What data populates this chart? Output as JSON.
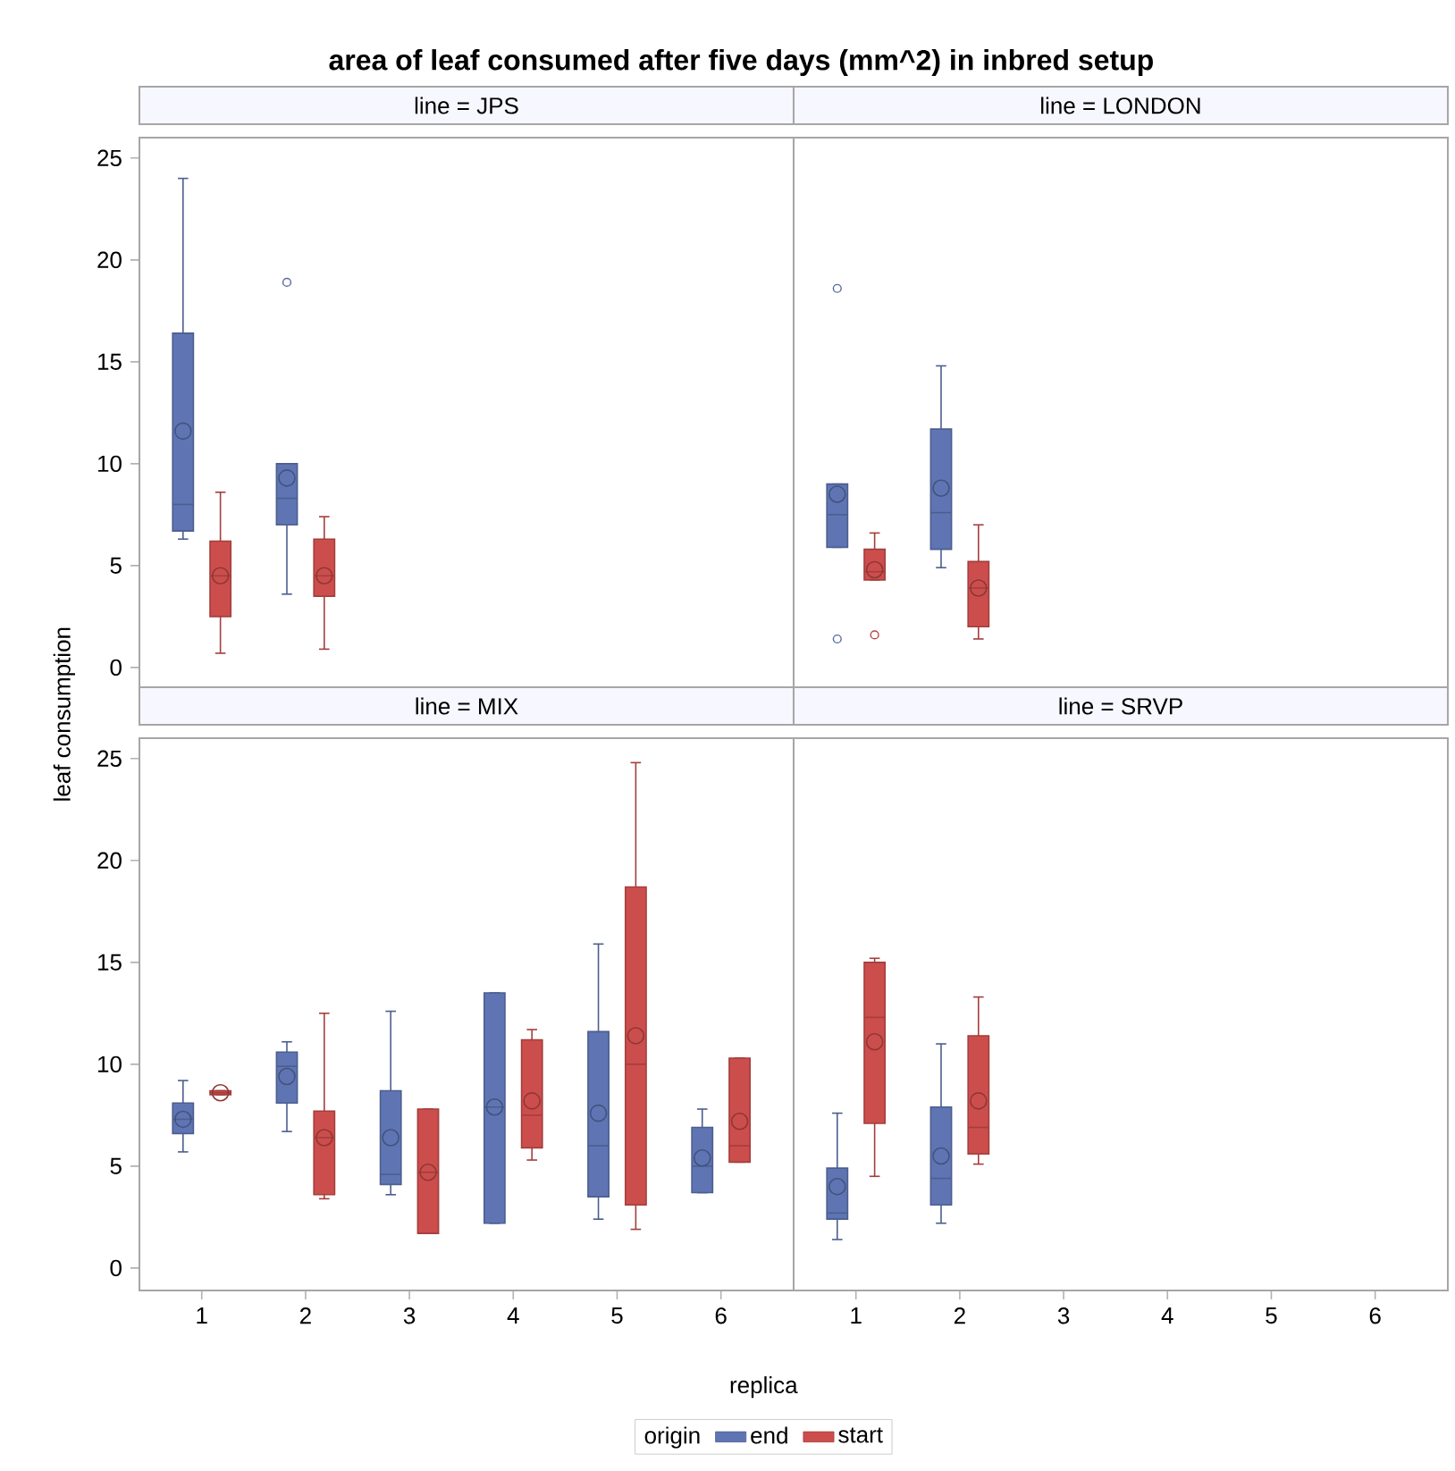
{
  "chart_data": [
    {
      "type": "box",
      "title": "area of leaf consumed after five days (mm^2) in inbred setup",
      "subtitle": "line = JPS",
      "ylabel": "leaf consumption",
      "categories": [
        "1",
        "2",
        "3",
        "4",
        "5",
        "6"
      ],
      "ylim": [
        -1.1,
        26
      ],
      "yticks": [
        0,
        5,
        10,
        15,
        20,
        25
      ],
      "tick_labels": "y",
      "grid": false,
      "series": [
        {
          "color": "#5f75b3",
          "boxes": [
            {
              "low": 6.3,
              "q1": 6.7,
              "median": 8.0,
              "q3": 16.4,
              "high": 24.0,
              "mean": 11.6
            },
            {
              "low": 3.6,
              "q1": 7.0,
              "median": 8.3,
              "q3": 10.0,
              "high": 10.0,
              "mean": 9.3,
              "outliers": [
                18.9
              ]
            },
            null,
            null,
            null,
            null
          ]
        },
        {
          "color": "#cc4e4c",
          "boxes": [
            {
              "low": 0.7,
              "q1": 2.5,
              "median": 4.5,
              "q3": 6.2,
              "high": 8.6,
              "mean": 4.5
            },
            {
              "low": 0.9,
              "q1": 3.5,
              "median": 4.5,
              "q3": 6.3,
              "high": 7.4,
              "mean": 4.5
            },
            null,
            null,
            null,
            null
          ]
        }
      ]
    },
    {
      "type": "box",
      "subtitle": "line = LONDON",
      "categories": [
        "1",
        "2",
        "3",
        "4",
        "5",
        "6"
      ],
      "ylim": [
        -1.1,
        26
      ],
      "yticks": [
        0,
        5,
        10,
        15,
        20,
        25
      ],
      "tick_labels": false,
      "grid": false,
      "series": [
        {
          "color": "#5f75b3",
          "boxes": [
            {
              "low": 5.9,
              "q1": 5.9,
              "median": 7.5,
              "q3": 9.0,
              "high": 9.0,
              "mean": 8.5,
              "outliers": [
                18.6,
                1.4
              ]
            },
            {
              "low": 4.9,
              "q1": 5.8,
              "median": 7.6,
              "q3": 11.7,
              "high": 14.8,
              "mean": 8.8
            },
            null,
            null,
            null,
            null
          ]
        },
        {
          "color": "#cc4e4c",
          "boxes": [
            {
              "low": 4.3,
              "q1": 4.3,
              "median": 4.7,
              "q3": 5.8,
              "high": 6.6,
              "mean": 4.8,
              "outliers": [
                1.6
              ]
            },
            {
              "low": 1.4,
              "q1": 2.0,
              "median": 3.9,
              "q3": 5.2,
              "high": 7.0,
              "mean": 3.9
            },
            null,
            null,
            null,
            null
          ]
        }
      ]
    },
    {
      "type": "box",
      "subtitle": "line = MIX",
      "xlabel": "replica",
      "legend": "bottom",
      "legend_title": "origin",
      "categories": [
        "1",
        "2",
        "3",
        "4",
        "5",
        "6"
      ],
      "ylim": [
        -1.1,
        26
      ],
      "yticks": [
        0,
        5,
        10,
        15,
        20,
        25
      ],
      "grid": false,
      "series": [
        {
          "name": "end",
          "color": "#5f75b3",
          "boxes": [
            {
              "low": 5.7,
              "q1": 6.6,
              "median": 7.3,
              "q3": 8.1,
              "high": 9.2,
              "mean": 7.3
            },
            {
              "low": 6.7,
              "q1": 8.1,
              "median": 9.9,
              "q3": 10.6,
              "high": 11.1,
              "mean": 9.4
            },
            {
              "low": 3.6,
              "q1": 4.1,
              "median": 4.6,
              "q3": 8.7,
              "high": 12.6,
              "mean": 6.4
            },
            {
              "low": 2.2,
              "q1": 2.2,
              "median": 7.9,
              "q3": 13.5,
              "high": 13.5,
              "mean": 7.9
            },
            {
              "low": 2.4,
              "q1": 3.5,
              "median": 6.0,
              "q3": 11.6,
              "high": 15.9,
              "mean": 7.6
            },
            {
              "low": 3.7,
              "q1": 3.7,
              "median": 5.0,
              "q3": 6.9,
              "high": 7.8,
              "mean": 5.4
            }
          ]
        },
        {
          "name": "start",
          "color": "#cc4e4c",
          "boxes": [
            {
              "low": 8.5,
              "q1": 8.5,
              "median": 8.6,
              "q3": 8.7,
              "high": 8.7,
              "mean": 8.6
            },
            {
              "low": 3.4,
              "q1": 3.6,
              "median": 6.4,
              "q3": 7.7,
              "high": 12.5,
              "mean": 6.4
            },
            {
              "low": 1.7,
              "q1": 1.7,
              "median": 4.7,
              "q3": 7.8,
              "high": 7.8,
              "mean": 4.7
            },
            {
              "low": 5.3,
              "q1": 5.9,
              "median": 7.5,
              "q3": 11.2,
              "high": 11.7,
              "mean": 8.2
            },
            {
              "low": 1.9,
              "q1": 3.1,
              "median": 10.0,
              "q3": 18.7,
              "high": 24.8,
              "mean": 11.4
            },
            {
              "low": 5.2,
              "q1": 5.2,
              "median": 6.0,
              "q3": 10.3,
              "high": 10.3,
              "mean": 7.2
            }
          ]
        }
      ]
    },
    {
      "type": "box",
      "subtitle": "line = SRVP",
      "categories": [
        "1",
        "2",
        "3",
        "4",
        "5",
        "6"
      ],
      "ylim": [
        -1.1,
        26
      ],
      "yticks": [
        0,
        5,
        10,
        15,
        20,
        25
      ],
      "tick_labels": "x",
      "grid": false,
      "series": [
        {
          "color": "#5f75b3",
          "boxes": [
            {
              "low": 1.4,
              "q1": 2.4,
              "median": 2.7,
              "q3": 4.9,
              "high": 7.6,
              "mean": 4.0
            },
            {
              "low": 2.2,
              "q1": 3.1,
              "median": 4.4,
              "q3": 7.9,
              "high": 11.0,
              "mean": 5.5
            },
            null,
            null,
            null,
            null
          ]
        },
        {
          "color": "#cc4e4c",
          "boxes": [
            {
              "low": 4.5,
              "q1": 7.1,
              "median": 12.3,
              "q3": 15.0,
              "high": 15.2,
              "mean": 11.1
            },
            {
              "low": 5.1,
              "q1": 5.6,
              "median": 6.9,
              "q3": 11.4,
              "high": 13.3,
              "mean": 8.2
            },
            null,
            null,
            null,
            null
          ]
        }
      ]
    }
  ]
}
